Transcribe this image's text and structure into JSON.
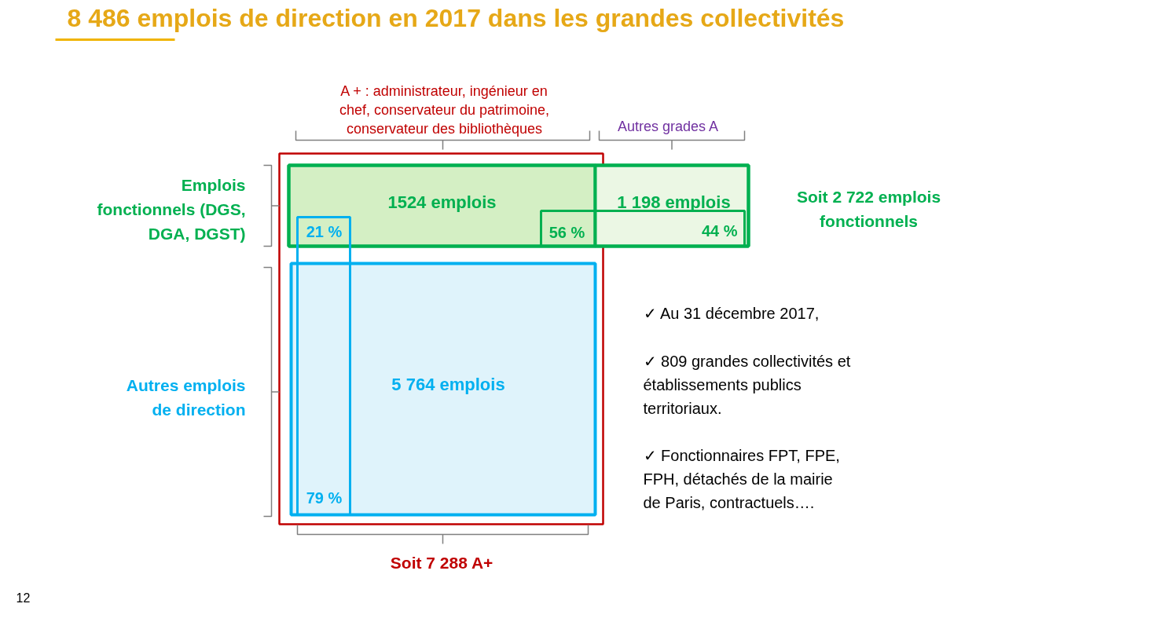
{
  "chart_data": {
    "type": "other",
    "title": "8 486 emplois de direction en 2017 dans les grandes collectivités",
    "categories": [
      "A + : administrateur, ingénieur en chef, conservateur du patrimoine, conservateur des bibliothèques",
      "Autres grades A"
    ],
    "series": [
      {
        "name": "Emplois fonctionnels (DGS, DGA, DGST)",
        "color": "#00b050",
        "values": [
          1524,
          1198
        ],
        "value_labels": [
          "1524 emplois",
          "1 198 emplois"
        ]
      },
      {
        "name": "Autres emplois de direction",
        "color": "#00b0f0",
        "values": [
          5764,
          null
        ],
        "value_labels": [
          "5 764 emplois",
          null
        ]
      }
    ],
    "annotations": [
      "21 %",
      "56 %",
      "44 %",
      "79 %",
      "Soit 2 722 emplois fonctionnels",
      "Soit 7 288 A+",
      "✓ Au 31 décembre 2017,",
      "✓ 809 grandes collectivités et établissements publics territoriaux.",
      "✓ Fonctionnaires FPT, FPE, FPH, détachés de la mairie de Paris, contractuels….",
      "12"
    ]
  }
}
